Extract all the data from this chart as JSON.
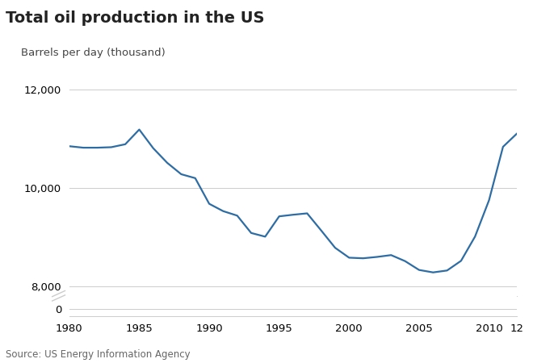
{
  "title": "Total oil production in the US",
  "ylabel": "Barrels per day (thousand)",
  "source": "Source: US Energy Information Agency",
  "line_color": "#2e6da4",
  "background_color": "#ffffff",
  "plot_bg_color": "#ffffff",
  "grid_color": "#cccccc",
  "years": [
    1980,
    1981,
    1982,
    1983,
    1984,
    1985,
    1986,
    1987,
    1988,
    1989,
    1990,
    1991,
    1992,
    1993,
    1994,
    1995,
    1996,
    1997,
    1998,
    1999,
    2000,
    2001,
    2002,
    2003,
    2004,
    2005,
    2006,
    2007,
    2008,
    2009,
    2010,
    2011,
    2012
  ],
  "values": [
    10851,
    10821,
    10821,
    10831,
    10891,
    11191,
    10810,
    10512,
    10280,
    10200,
    9677,
    9527,
    9436,
    9082,
    9007,
    9421,
    9454,
    9482,
    9134,
    8780,
    8578,
    8566,
    8594,
    8631,
    8508,
    8328,
    8278,
    8317,
    8514,
    9009,
    9750,
    10839,
    11111
  ],
  "xtick_labels": [
    "1980",
    "1985",
    "1990",
    "1995",
    "2000",
    "2005",
    "2010",
    "12"
  ],
  "xtick_positions": [
    1980,
    1985,
    1990,
    1995,
    2000,
    2005,
    2010,
    2012
  ],
  "title_fontsize": 14,
  "label_fontsize": 9.5,
  "tick_fontsize": 9.5,
  "source_fontsize": 8.5,
  "linewidth": 1.6
}
